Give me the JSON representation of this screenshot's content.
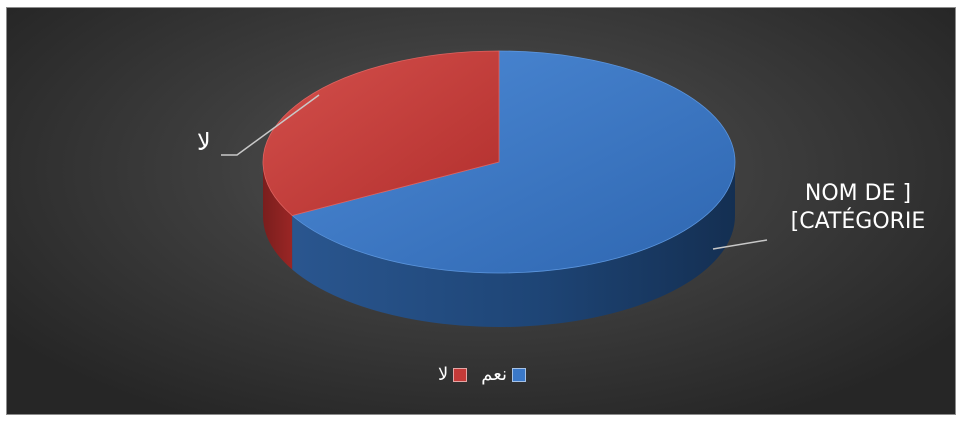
{
  "chart_data": {
    "type": "pie",
    "title": "",
    "three_d": true,
    "slices": [
      {
        "label": "نعم",
        "value": 67,
        "color": "#3a78c8",
        "data_label": [
          "NOM DE ]",
          "[CATÉGORIE"
        ]
      },
      {
        "label": "لا",
        "value": 33,
        "color": "#c43a38",
        "data_label": [
          "لا"
        ]
      }
    ],
    "legend": {
      "position": "bottom",
      "entries": [
        {
          "label": "نعم",
          "color": "#3a78c8"
        },
        {
          "label": "لا",
          "color": "#c43a38"
        }
      ]
    },
    "background": "#3c3c3c"
  }
}
